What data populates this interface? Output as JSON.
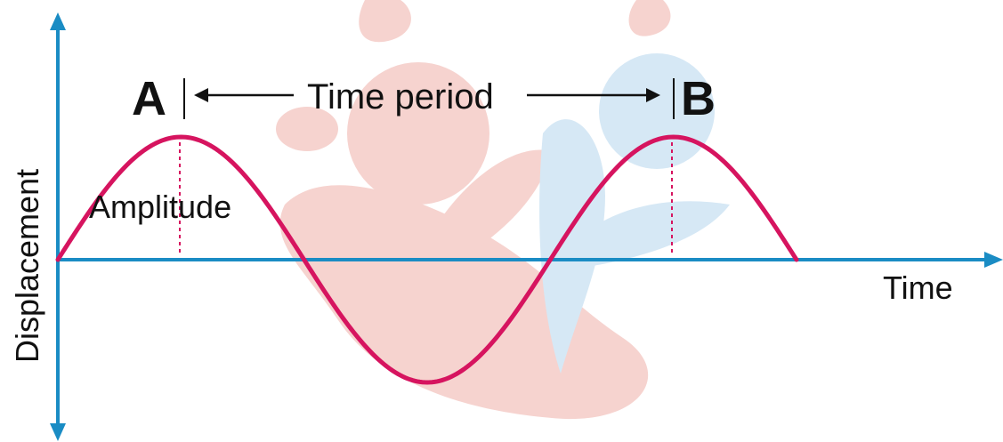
{
  "labels": {
    "point_a": "A",
    "point_b": "B",
    "time_period": "Time period",
    "amplitude": "Amplitude",
    "y_axis": "Displacement",
    "x_axis": "Time"
  },
  "colors": {
    "axis": "#1a8cc4",
    "wave": "#d6145f",
    "marker_lines": "#d6145f",
    "text": "#111111",
    "watermark_red": "#f4c6c0",
    "watermark_blue": "#d3e6f4"
  },
  "wave": {
    "cycles": 1.5
  }
}
